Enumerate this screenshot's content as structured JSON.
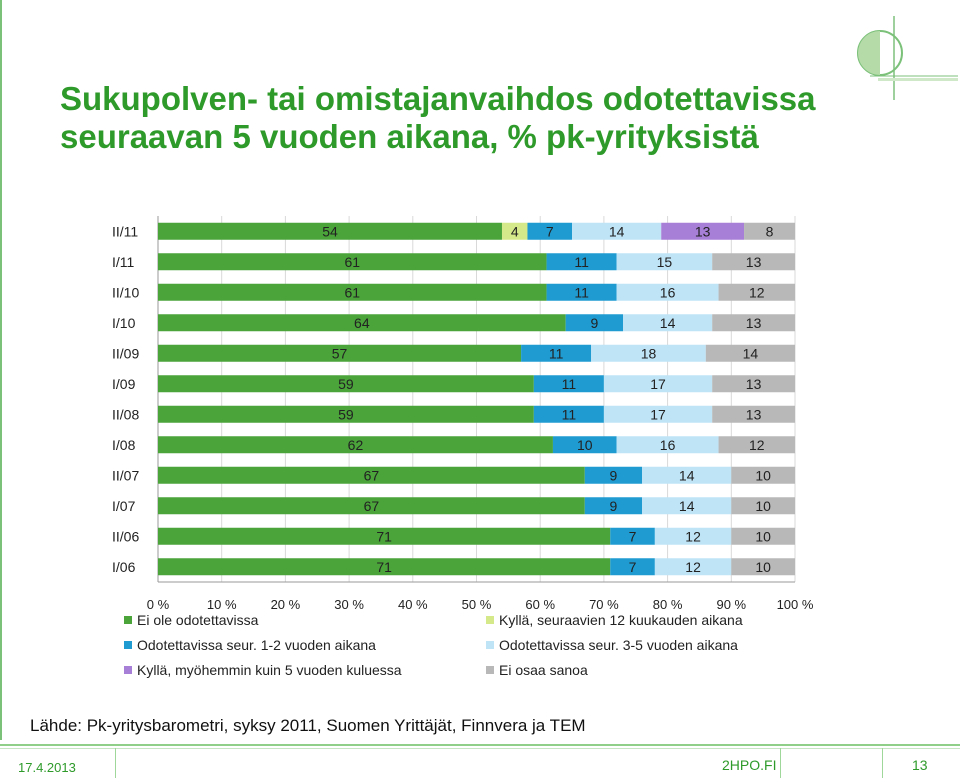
{
  "slide": {
    "title_line1": "Sukupolven- tai omistajanvaihdos odotettavissa",
    "title_line2": "seuraavan 5 vuoden aikana, % pk-yrityksistä",
    "source": "Lähde: Pk-yritysbarometri, syksy 2011, Suomen Yrittäjät, Finnvera ja TEM",
    "footer_date": "17.4.2013",
    "footer_site": "2HPO.FI",
    "footer_page": "13",
    "title_color": "#2e9a2a"
  },
  "chart_data": {
    "type": "bar",
    "orientation": "horizontal",
    "stacked": "100%",
    "categories": [
      "II/11",
      "I/11",
      "II/10",
      "I/10",
      "II/09",
      "I/09",
      "II/08",
      "I/08",
      "II/07",
      "I/07",
      "II/06",
      "I/06"
    ],
    "xlim": [
      0,
      100
    ],
    "x_ticks": [
      "0 %",
      "10 %",
      "20 %",
      "30 %",
      "40 %",
      "50 %",
      "60 %",
      "70 %",
      "80 %",
      "90 %",
      "100 %"
    ],
    "grid": true,
    "legend_position": "bottom",
    "series": [
      {
        "name": "Ei ole odotettavissa",
        "color": "#4aa43a",
        "values": [
          54,
          61,
          61,
          64,
          57,
          59,
          59,
          62,
          67,
          67,
          71,
          71
        ]
      },
      {
        "name": "Kyllä, seuraavien 12 kuukauden aikana",
        "color": "#d6e98a",
        "values": [
          4,
          0,
          0,
          0,
          0,
          0,
          0,
          0,
          0,
          0,
          0,
          0
        ]
      },
      {
        "name": "Odotettavissa seur. 1-2 vuoden aikana",
        "color": "#1f9bd2",
        "values": [
          7,
          11,
          11,
          9,
          11,
          11,
          11,
          10,
          9,
          9,
          7,
          7
        ]
      },
      {
        "name": "Odotettavissa seur. 3-5 vuoden aikana",
        "color": "#bfe4f6",
        "values": [
          14,
          15,
          16,
          14,
          18,
          17,
          17,
          16,
          14,
          14,
          12,
          12
        ]
      },
      {
        "name": "Kyllä, myöhemmin kuin 5 vuoden kuluessa",
        "color": "#a77fd6",
        "values": [
          13,
          0,
          0,
          0,
          0,
          0,
          0,
          0,
          0,
          0,
          0,
          0
        ]
      },
      {
        "name": "Ei osaa sanoa",
        "color": "#b8b8b8",
        "values": [
          8,
          13,
          12,
          13,
          14,
          13,
          13,
          12,
          10,
          10,
          10,
          10
        ]
      }
    ]
  }
}
